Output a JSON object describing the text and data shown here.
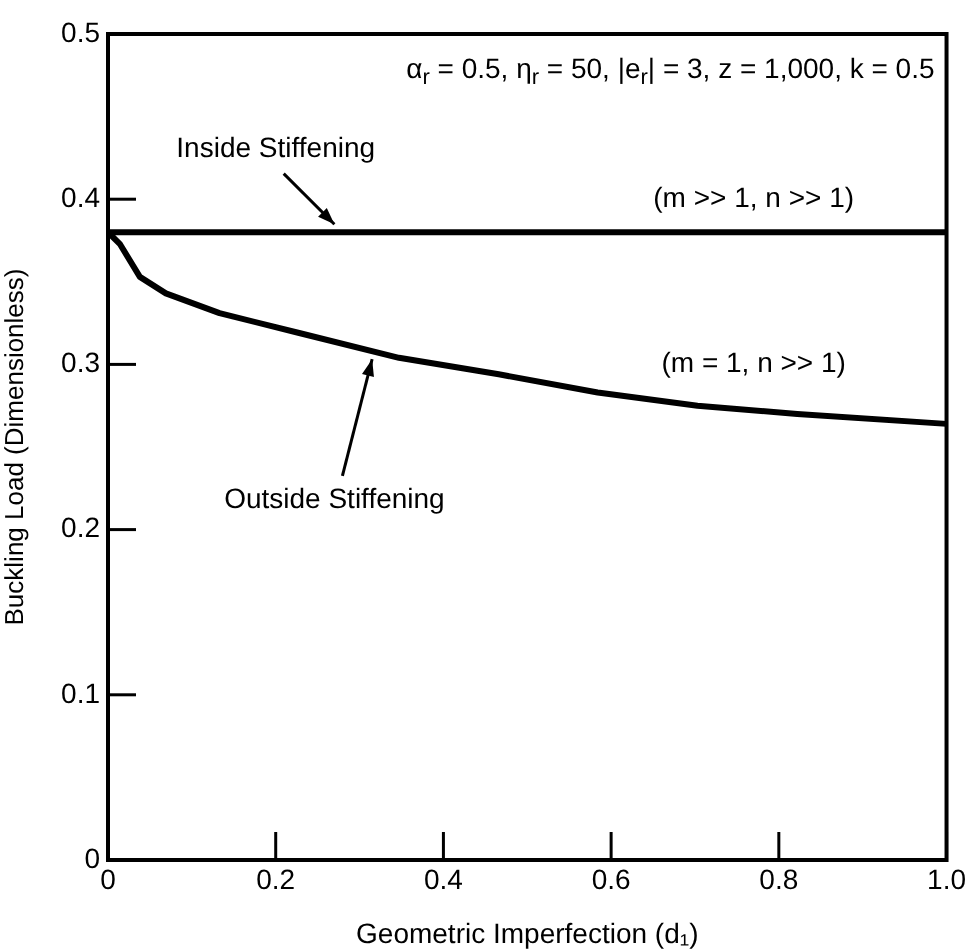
{
  "chart_data": {
    "type": "line",
    "xlabel": "Geometric Imperfection (d₁)",
    "ylabel": "Buckling Load (Dimensionless)",
    "x": [
      0,
      0.014,
      0.038,
      0.069,
      0.133,
      0.228,
      0.347,
      0.466,
      0.584,
      0.703,
      0.822,
      1.0
    ],
    "series": [
      {
        "name": "Inside Stiffening",
        "color": "#000000",
        "values": [
          0.38,
          0.38,
          0.38,
          0.38,
          0.38,
          0.38,
          0.38,
          0.38,
          0.38,
          0.38,
          0.38,
          0.38
        ]
      },
      {
        "name": "Outside Stiffening",
        "color": "#000000",
        "values": [
          0.38,
          0.373,
          0.353,
          0.343,
          0.331,
          0.319,
          0.304,
          0.294,
          0.283,
          0.275,
          0.27,
          0.264
        ]
      }
    ],
    "xlim": [
      0,
      1
    ],
    "xticks": [
      0,
      0.2,
      0.4,
      0.6,
      0.8,
      {
        "value": 1,
        "label": "1.0"
      }
    ],
    "ylim": [
      0,
      0.5
    ],
    "yticks": [
      0,
      0.1,
      0.2,
      0.3,
      0.4,
      0.5
    ],
    "grid": false,
    "legend": false,
    "marker": "none",
    "line_style": "solid",
    "annotations": [
      "α$_{r}$ = 0.5, η$_{r}$ = 50, |e$_{r}$| = 3, z = 1,000, k = 0.5",
      "(m >> 1, n >> 1)",
      "(m = 1, n >> 1)"
    ]
  }
}
